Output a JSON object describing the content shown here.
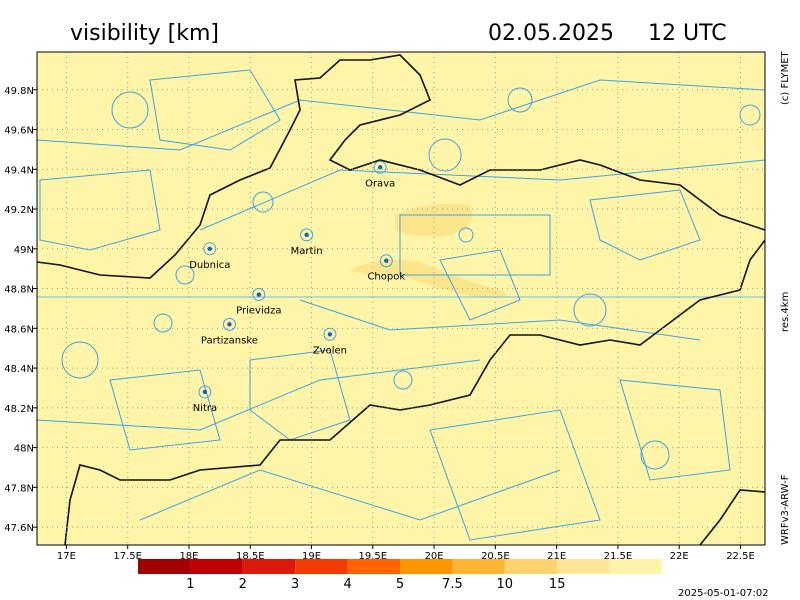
{
  "header": {
    "title": "visibility [km]",
    "date": "02.05.2025",
    "time": "12 UTC"
  },
  "side_labels": {
    "copyright": "(c) FLYMET",
    "resolution": "res.4km",
    "model": "WRFv3-ARW-F"
  },
  "footer": {
    "timestamp": "2025-05-01-07:02"
  },
  "map": {
    "lon_range": [
      16.76,
      22.7
    ],
    "lat_range": [
      47.51,
      49.99
    ],
    "lon_ticks": [
      {
        "value": 17,
        "label": "17E"
      },
      {
        "value": 17.5,
        "label": "17.5E"
      },
      {
        "value": 18,
        "label": "18E"
      },
      {
        "value": 18.5,
        "label": "18.5E"
      },
      {
        "value": 19,
        "label": "19E"
      },
      {
        "value": 19.5,
        "label": "19.5E"
      },
      {
        "value": 20,
        "label": "20E"
      },
      {
        "value": 20.5,
        "label": "20.5E"
      },
      {
        "value": 21,
        "label": "21E"
      },
      {
        "value": 21.5,
        "label": "21.5E"
      },
      {
        "value": 22,
        "label": "22E"
      },
      {
        "value": 22.5,
        "label": "22.5E"
      }
    ],
    "lat_ticks": [
      {
        "value": 49.8,
        "label": "49.8N"
      },
      {
        "value": 49.6,
        "label": "49.6N"
      },
      {
        "value": 49.4,
        "label": "49.4N"
      },
      {
        "value": 49.2,
        "label": "49.2N"
      },
      {
        "value": 49,
        "label": "49N"
      },
      {
        "value": 48.8,
        "label": "48.8N"
      },
      {
        "value": 48.6,
        "label": "48.6N"
      },
      {
        "value": 48.4,
        "label": "48.4N"
      },
      {
        "value": 48.2,
        "label": "48.2N"
      },
      {
        "value": 48,
        "label": "48N"
      },
      {
        "value": 47.8,
        "label": "47.8N"
      },
      {
        "value": 47.6,
        "label": "47.6N"
      }
    ],
    "cities": [
      {
        "name": "Orava",
        "lon": 19.56,
        "lat": 49.41
      },
      {
        "name": "Chopok",
        "lon": 19.61,
        "lat": 48.94
      },
      {
        "name": "Martin",
        "lon": 18.96,
        "lat": 49.07
      },
      {
        "name": "Dubnica",
        "lon": 18.17,
        "lat": 49.0
      },
      {
        "name": "Prievidza",
        "lon": 18.57,
        "lat": 48.77
      },
      {
        "name": "Partizanske",
        "lon": 18.33,
        "lat": 48.62
      },
      {
        "name": "Zvolen",
        "lon": 19.15,
        "lat": 48.57
      },
      {
        "name": "Nitra",
        "lon": 18.13,
        "lat": 48.28
      }
    ]
  },
  "legend": {
    "colors": [
      "#a00000",
      "#be0000",
      "#dc1a0a",
      "#f03c00",
      "#ff6400",
      "#ff9600",
      "#ffb432",
      "#ffd26e",
      "#ffe696",
      "#fff5aa"
    ],
    "labels": [
      1,
      2,
      3,
      4,
      5,
      7.5,
      10,
      15
    ]
  }
}
